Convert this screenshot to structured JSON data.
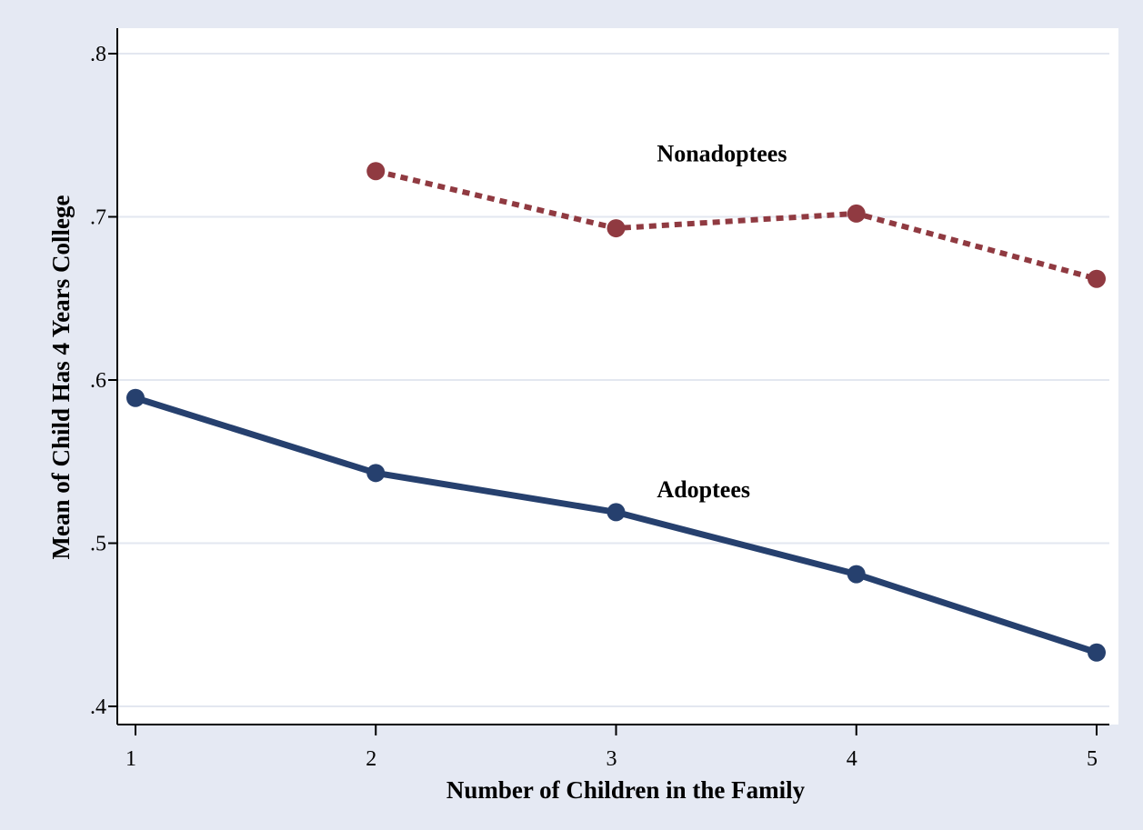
{
  "chart_data": {
    "type": "line",
    "title": "",
    "xlabel": "Number of Children in the Family",
    "ylabel": "Mean of Child Has 4 Years College",
    "x": [
      1,
      2,
      3,
      4,
      5
    ],
    "x_ticks": [
      {
        "value": 1,
        "label": "1"
      },
      {
        "value": 2,
        "label": "2"
      },
      {
        "value": 3,
        "label": "3"
      },
      {
        "value": 4,
        "label": "4"
      },
      {
        "value": 5,
        "label": "5"
      }
    ],
    "y_ticks": [
      {
        "value": 0.4,
        "label": ".4"
      },
      {
        "value": 0.5,
        "label": ".5"
      },
      {
        "value": 0.6,
        "label": ".6"
      },
      {
        "value": 0.7,
        "label": ".7"
      },
      {
        "value": 0.8,
        "label": ".8"
      }
    ],
    "xlim": [
      1,
      5
    ],
    "ylim": [
      0.4,
      0.8
    ],
    "grid": true,
    "legend": "none",
    "series": [
      {
        "name": "Nonadoptees",
        "label": "Nonadoptees",
        "color": "#903a41",
        "style": "dotted",
        "label_at": [
          3.17,
          0.734
        ],
        "points": [
          {
            "x": 2,
            "y": 0.728
          },
          {
            "x": 3,
            "y": 0.693
          },
          {
            "x": 4,
            "y": 0.702
          },
          {
            "x": 5,
            "y": 0.662
          }
        ]
      },
      {
        "name": "Adoptees",
        "label": "Adoptees",
        "color": "#26406e",
        "style": "solid",
        "label_at": [
          3.17,
          0.528
        ],
        "points": [
          {
            "x": 1,
            "y": 0.589
          },
          {
            "x": 2,
            "y": 0.543
          },
          {
            "x": 3,
            "y": 0.519
          },
          {
            "x": 4,
            "y": 0.481
          },
          {
            "x": 5,
            "y": 0.433
          }
        ]
      }
    ]
  }
}
